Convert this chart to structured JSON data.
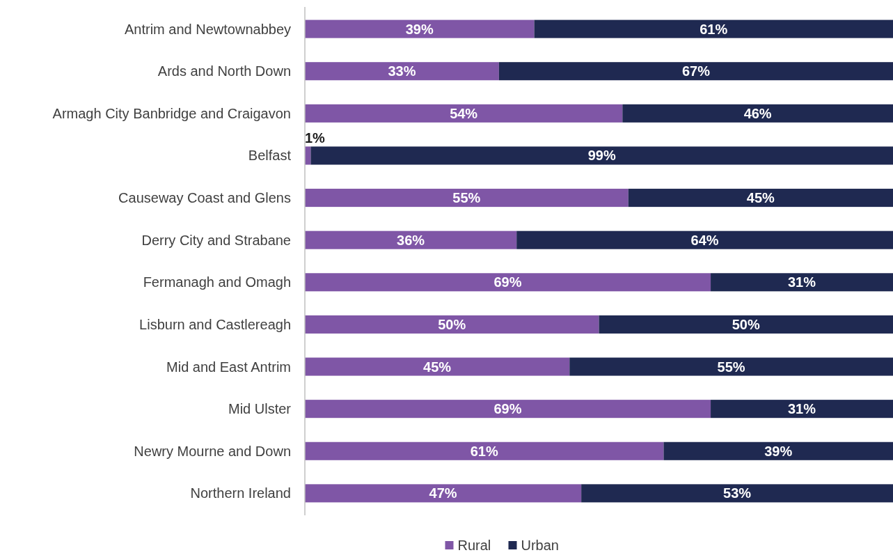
{
  "chart_data": {
    "type": "bar",
    "orientation": "horizontal",
    "stacked": true,
    "categories": [
      "Antrim and Newtownabbey",
      "Ards and North Down",
      "Armagh City Banbridge and Craigavon",
      "Belfast",
      "Causeway Coast and Glens",
      "Derry City and Strabane",
      "Fermanagh and Omagh",
      "Lisburn and Castlereagh",
      "Mid and East Antrim",
      "Mid Ulster",
      "Newry Mourne and Down",
      "Northern Ireland"
    ],
    "series": [
      {
        "name": "Rural",
        "color": "#7f56a6",
        "values": [
          39,
          33,
          54,
          1,
          55,
          36,
          69,
          50,
          45,
          69,
          61,
          47
        ],
        "value_labels": [
          "39%",
          "33%",
          "54%",
          "1%",
          "55%",
          "36%",
          "69%",
          "50%",
          "45%",
          "69%",
          "61%",
          "47%"
        ]
      },
      {
        "name": "Urban",
        "color": "#1f2951",
        "values": [
          61,
          67,
          46,
          99,
          45,
          64,
          31,
          50,
          55,
          31,
          39,
          53
        ],
        "value_labels": [
          "61%",
          "67%",
          "46%",
          "99%",
          "45%",
          "64%",
          "31%",
          "50%",
          "55%",
          "31%",
          "39%",
          "53%"
        ]
      }
    ],
    "legend": "bottom"
  }
}
